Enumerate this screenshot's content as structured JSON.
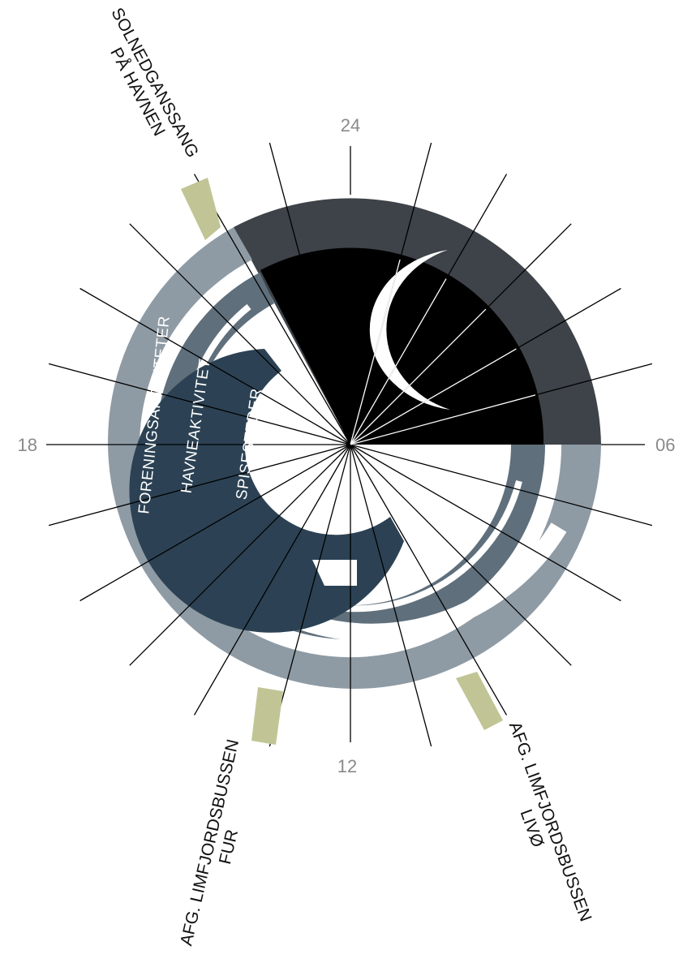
{
  "hour_labels": {
    "top": "24",
    "right": "06",
    "bottom": "12",
    "left": "18"
  },
  "rings": [
    {
      "label": "FORENINGSAKTIVITETER",
      "color": "#8f9ba4"
    },
    {
      "label": "HAVNEAKTIVITET",
      "color": "#5f6f7c"
    },
    {
      "label": "SPISESTEDER",
      "color": "#2c4254"
    }
  ],
  "night": {
    "outer_color": "#3e4349",
    "inner_color": "#000000",
    "moon_color": "#ffffff"
  },
  "events": [
    {
      "lines": [
        "SOLNEDGANSSANG",
        "PÅ HAVNEN"
      ],
      "color": "#c1c596"
    },
    {
      "lines": [
        "AFG. LIMFJORDSBUSSEN",
        "FUR"
      ],
      "color": "#c1c596"
    },
    {
      "lines": [
        "AFG. LIMFJORDSBUSSEN",
        "LIVØ"
      ],
      "color": "#c1c596"
    }
  ]
}
